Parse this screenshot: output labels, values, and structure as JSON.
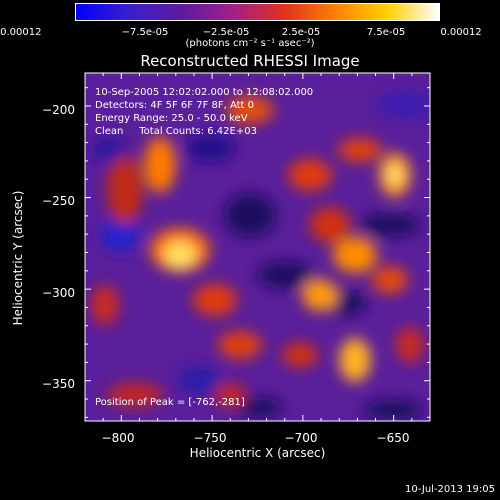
{
  "colorbar": {
    "ticks": [
      "-0.00012",
      "−7.5e-05",
      "−2.5e-05",
      "2.5e-05",
      "7.5e-05",
      "0.00012"
    ],
    "units": "(photons cm⁻² s⁻¹ asec⁻²)",
    "colors": [
      "#0000ff",
      "#3a1fd0",
      "#5b1aa0",
      "#a0208a",
      "#e03020",
      "#ff8000",
      "#ffd000",
      "#ffffff"
    ]
  },
  "title": "Reconstructed RHESSI Image",
  "annotations": {
    "line1": "10-Sep-2005 12:02:02.000 to 12:08:02.000",
    "line2": "Detectors: 4F 5F 6F 7F 8F, Att 0",
    "line3": "Energy Range: 25.0 - 50.0 keV",
    "line4": "Clean     Total Counts: 6.42E+03",
    "peak": "Position of Peak = [-762,-281]"
  },
  "axes": {
    "xlabel": "Heliocentric X (arcsec)",
    "ylabel": "Heliocentric Y (arcsec)",
    "xticks": [
      "−800",
      "−750",
      "−700",
      "−650"
    ],
    "yticks": [
      "−200",
      "−250",
      "−300",
      "−350"
    ],
    "xlim": [
      -820,
      -630
    ],
    "ylim": [
      -372,
      -182
    ]
  },
  "footer": "10-Jul-2013 19:05"
}
